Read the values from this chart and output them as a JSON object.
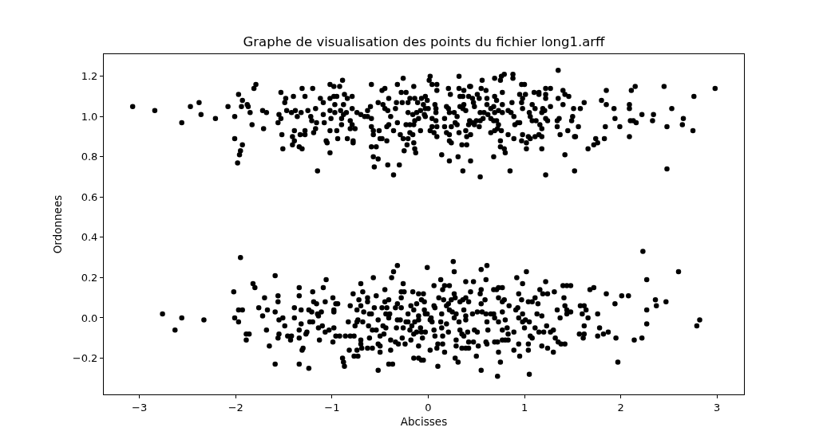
{
  "chart_data": {
    "type": "scatter",
    "title": "Graphe de visualisation des points du fichier long1.arff",
    "xlabel": "Abcisses",
    "ylabel": "Ordonnees",
    "color": "#000000",
    "marker": "circle",
    "xlim": [
      -3.37,
      3.28
    ],
    "ylim": [
      -0.38,
      1.31
    ],
    "xticks": [
      {
        "value": -3,
        "label": "−3"
      },
      {
        "value": -2,
        "label": "−2"
      },
      {
        "value": -1,
        "label": "−1"
      },
      0,
      1,
      2,
      3
    ],
    "yticks": [
      {
        "value": -0.2,
        "label": "−0.2"
      },
      {
        "value": 0,
        "label": "0.0"
      },
      0.2,
      0.4,
      0.6,
      0.8,
      {
        "value": 1,
        "label": "1.0"
      },
      1.2
    ],
    "x": [
      -3.07,
      -2.84,
      -2.56,
      -2.47,
      -2.38,
      -2.36,
      -2.21,
      -2.08,
      -2.01,
      -1.97,
      -1.93,
      -1.94,
      -1.88,
      -1.87,
      -1.85,
      -1.81,
      -1.79,
      -1.83,
      -1.71,
      -1.72,
      -1.68,
      -2.01,
      -1.93,
      -1.95,
      -1.96,
      -1.98,
      -1.53,
      -1.48,
      -1.49,
      -1.4,
      -1.31,
      -1.28,
      -1.2,
      -1.55,
      -1.53,
      -1.56,
      -1.47,
      -1.42,
      -1.38,
      -1.36,
      -1.32,
      -1.25,
      -1.22,
      -1.21,
      -1.17,
      -1.16,
      -1.52,
      -1.51,
      -1.41,
      -1.39,
      -1.39,
      -1.41,
      -1.34,
      -1.31,
      -1.33,
      -1.28,
      -1.28,
      -1.19,
      -1.17,
      -1.15,
      -1.12,
      -1.09,
      -1.02,
      -0.98,
      -0.92,
      -0.89,
      -1.02,
      -0.98,
      -0.95,
      -0.97,
      -0.88,
      -0.87,
      -0.84,
      -0.79,
      -1.09,
      -1.08,
      -1.02,
      -1.01,
      -0.97,
      -0.91,
      -0.88,
      -0.9,
      -0.85,
      -0.79,
      -0.74,
      -0.7,
      -0.66,
      -0.63,
      -0.59,
      -0.63,
      -0.6,
      -0.59,
      -0.9,
      -0.81,
      -0.79,
      -0.76,
      -0.81,
      -1.02,
      -0.95,
      -0.94,
      -1.06,
      -1.05,
      -1.02,
      -0.84,
      -0.78,
      -0.78,
      -0.59,
      -0.57,
      -0.57,
      -0.51,
      -0.5,
      -0.48,
      -0.43,
      -0.59,
      -0.54,
      -0.57,
      -0.52,
      -0.56,
      -0.42,
      -0.3,
      -0.36,
      -0.48,
      -0.45,
      -0.52,
      -0.47,
      -0.41,
      -0.45,
      -0.42,
      -0.39,
      -0.41,
      -0.43,
      -0.36,
      -0.32,
      -0.26,
      -0.32,
      -0.28,
      -0.23,
      -0.33,
      -0.34,
      -0.27,
      -0.21,
      -0.19,
      -0.15,
      -0.14,
      -0.11,
      -0.07,
      -0.03,
      -0.05,
      -0.21,
      -0.16,
      -0.12,
      -0.08,
      -0.03,
      -0.1,
      -0.14,
      -0.03,
      -0.23,
      -0.19,
      -0.15,
      -0.08,
      -0.29,
      -0.26,
      -0.19,
      -0.16,
      -0.21,
      -0.22,
      -0.15,
      -0.25,
      -0.14,
      -0.13,
      0.02,
      0.01,
      0.02,
      0.04,
      0.09,
      0.09,
      -0.01,
      0.0,
      -0.04,
      0.07,
      0.08,
      0.08,
      0.04,
      0.08,
      0.04,
      0.09,
      0.06,
      0.09,
      0.14,
      0.22,
      0.21,
      0.23,
      0.32,
      0.32,
      0.37,
      0.33,
      0.36,
      0.43,
      0.44,
      0.42,
      0.46,
      0.19,
      0.21,
      0.22,
      0.27,
      0.3,
      0.33,
      0.37,
      0.39,
      0.36,
      0.17,
      0.17,
      0.24,
      0.28,
      0.3,
      0.32,
      0.19,
      0.22,
      0.22,
      0.24,
      0.35,
      0.4,
      0.4,
      0.44,
      0.39,
      0.42,
      0.43,
      0.46,
      0.48,
      0.53,
      0.5,
      0.54,
      0.57,
      0.54,
      0.58,
      0.62,
      0.61,
      0.65,
      0.68,
      0.69,
      0.65,
      0.68,
      0.71,
      0.73,
      0.72,
      0.65,
      0.69,
      0.76,
      0.48,
      0.47,
      0.51,
      0.53,
      0.55,
      0.56,
      0.6,
      0.61,
      0.69,
      0.75,
      0.76,
      0.79,
      0.88,
      0.88,
      0.77,
      0.69,
      0.71,
      0.77,
      0.73,
      0.77,
      0.83,
      0.86,
      0.87,
      0.89,
      0.9,
      0.93,
      0.95,
      0.83,
      0.89,
      0.75,
      0.75,
      0.79,
      0.8,
      0.68,
      0.44,
      0.36,
      0.54,
      0.85,
      0.31,
      0.97,
      1.0,
      0.95,
      0.98,
      1.01,
      0.97,
      0.98,
      1.05,
      1.06,
      1.08,
      1.11,
      1.1,
      1.15,
      1.15,
      1.22,
      1.27,
      1.22,
      1.22,
      1.19,
      1.21,
      1.18,
      1.22,
      1.24,
      1.27,
      1.08,
      1.12,
      1.16,
      1.18,
      0.98,
      1.04,
      1.06,
      1.11,
      1.15,
      1.18,
      0.97,
      1.02,
      1.02,
      1.18,
      1.22,
      1.35,
      1.35,
      1.4,
      1.42,
      1.46,
      1.4,
      1.36,
      1.34,
      1.34,
      1.37,
      1.42,
      1.45,
      1.51,
      1.49,
      1.5,
      1.56,
      1.58,
      1.53,
      1.52,
      1.62,
      1.52,
      1.66,
      1.72,
      1.76,
      1.74,
      1.8,
      1.85,
      1.85,
      1.93,
      1.94,
      1.84,
      1.83,
      1.99,
      2.09,
      2.09,
      2.11,
      2.15,
      2.1,
      2.13,
      2.16,
      2.09,
      2.22,
      2.33,
      2.34,
      2.45,
      2.53,
      2.48,
      2.48,
      2.65,
      2.64,
      2.75,
      2.76,
      2.98,
      -2.76,
      -2.63,
      -2.56,
      -2.33,
      -2.02,
      -2.01,
      -1.97,
      -1.93,
      -1.97,
      -1.95,
      -1.89,
      -1.86,
      -1.89,
      -1.82,
      -1.8,
      -1.76,
      -1.72,
      -1.7,
      -1.67,
      -1.68,
      -1.65,
      -1.59,
      -1.59,
      -1.56,
      -1.56,
      -1.55,
      -1.51,
      -1.49,
      -1.55,
      -1.56,
      -1.59,
      -1.46,
      -1.42,
      -1.43,
      -1.39,
      -1.39,
      -1.34,
      -1.34,
      -1.32,
      -1.32,
      -1.34,
      -1.34,
      -1.3,
      -1.31,
      -1.34,
      -1.24,
      -1.27,
      -1.26,
      -1.24,
      -1.21,
      -1.2,
      -1.19,
      -1.16,
      -1.15,
      -1.14,
      -1.11,
      -1.23,
      -1.2,
      -1.14,
      -1.1,
      -1.13,
      -1.09,
      -1.06,
      -1.07,
      -1.07,
      -1.03,
      -0.99,
      -0.98,
      -0.98,
      -0.96,
      -0.94,
      -0.98,
      -0.96,
      -0.99,
      -0.92,
      -0.89,
      -0.88,
      -0.87,
      -0.86,
      -0.81,
      -0.77,
      -0.83,
      -0.81,
      -0.78,
      -0.82,
      -0.77,
      -0.73,
      -0.74,
      -0.7,
      -0.69,
      -0.7,
      -0.74,
      -0.73,
      -0.76,
      -0.74,
      -0.72,
      -0.7,
      -0.7,
      -0.68,
      -0.67,
      -0.68,
      -0.63,
      -0.63,
      -0.61,
      -0.59,
      -0.62,
      -0.58,
      -0.61,
      -0.63,
      -0.58,
      -0.57,
      -0.56,
      -0.54,
      -0.52,
      -0.54,
      -0.5,
      -0.52,
      -0.5,
      -0.5,
      -0.52,
      -0.48,
      -0.45,
      -0.45,
      -0.43,
      -0.41,
      -0.44,
      -0.4,
      -0.41,
      -0.47,
      -0.44,
      -0.46,
      -0.39,
      -0.34,
      -0.31,
      -0.39,
      -0.41,
      -0.37,
      -0.38,
      -0.36,
      -0.32,
      -0.34,
      -0.32,
      -0.32,
      -0.33,
      -0.28,
      -0.28,
      -0.25,
      -0.26,
      -0.28,
      -0.29,
      -0.26,
      -0.27,
      -0.24,
      -0.23,
      -0.21,
      -0.21,
      -0.18,
      -0.16,
      -0.19,
      -0.17,
      -0.18,
      -0.15,
      -0.15,
      -0.14,
      -0.12,
      -0.1,
      -0.1,
      -0.1,
      -0.08,
      -0.15,
      -0.12,
      -0.1,
      -0.1,
      -0.07,
      -0.06,
      -0.07,
      -0.07,
      -0.05,
      -0.04,
      -0.03,
      -0.01,
      -0.04,
      0.02,
      0.02,
      -0.01,
      -0.03,
      -0.05,
      0.06,
      0.1,
      0.06,
      0.07,
      0.03,
      0.04,
      0.06,
      0.07,
      0.1,
      0.09,
      0.11,
      0.13,
      0.15,
      0.17,
      0.22,
      0.16,
      0.14,
      0.13,
      0.14,
      0.15,
      0.15,
      0.17,
      0.19,
      0.21,
      0.22,
      0.24,
      0.26,
      0.27,
      0.27,
      0.28,
      0.25,
      0.27,
      0.19,
      0.21,
      0.29,
      0.29,
      0.29,
      0.28,
      0.31,
      0.33,
      0.32,
      0.33,
      0.35,
      0.36,
      0.39,
      0.39,
      0.37,
      0.39,
      0.39,
      0.35,
      0.37,
      0.39,
      0.42,
      0.42,
      0.41,
      0.42,
      0.44,
      0.46,
      0.47,
      0.47,
      0.48,
      0.51,
      0.5,
      0.52,
      0.51,
      0.54,
      0.55,
      0.55,
      0.56,
      0.55,
      0.61,
      0.6,
      0.59,
      0.6,
      0.61,
      0.62,
      0.6,
      0.61,
      0.55,
      0.65,
      0.68,
      0.69,
      0.68,
      0.69,
      0.71,
      0.73,
      0.73,
      0.73,
      0.72,
      0.73,
      0.75,
      0.72,
      0.77,
      0.77,
      0.77,
      0.79,
      0.77,
      0.77,
      0.8,
      0.8,
      0.83,
      0.82,
      0.84,
      0.83,
      0.89,
      0.89,
      0.92,
      0.91,
      0.93,
      0.94,
      0.94,
      0.94,
      0.95,
      0.97,
      0.98,
      0.98,
      0.98,
      1.0,
      1.01,
      1.02,
      1.04,
      1.04,
      1.04,
      1.05,
      1.06,
      1.08,
      1.05,
      1.08,
      1.11,
      1.11,
      1.13,
      1.14,
      1.15,
      1.16,
      1.18,
      1.18,
      1.19,
      1.2,
      1.22,
      1.23,
      1.24,
      1.24,
      1.27,
      1.3,
      1.3,
      1.31,
      1.32,
      1.34,
      1.35,
      1.37,
      1.38,
      1.4,
      1.41,
      1.42,
      1.42,
      1.44,
      1.44,
      1.44,
      1.48,
      1.48,
      1.57,
      1.58,
      1.6,
      1.61,
      1.62,
      1.62,
      1.62,
      1.64,
      1.66,
      1.68,
      1.72,
      1.76,
      1.76,
      1.78,
      1.82,
      1.85,
      1.87,
      1.94,
      1.95,
      1.97,
      2.01,
      2.08,
      2.14,
      2.22,
      2.23,
      2.27,
      2.27,
      2.27,
      2.36,
      2.37,
      2.47,
      2.6,
      2.79,
      2.82
    ],
    "values": [
      1.05,
      1.03,
      0.97,
      1.05,
      1.07,
      1.01,
      0.99,
      1.05,
      1.0,
      1.11,
      1.08,
      1.05,
      1.06,
      1.05,
      1.02,
      1.14,
      1.16,
      0.96,
      0.94,
      1.03,
      1.02,
      0.89,
      0.86,
      0.83,
      0.81,
      0.77,
      1.12,
      1.09,
      1.07,
      1.1,
      1.14,
      1.1,
      1.14,
      1.01,
      0.99,
      0.97,
      1.03,
      1.02,
      1.03,
      1.0,
      1.02,
      1.03,
      1.0,
      0.98,
      1.04,
      0.97,
      0.91,
      0.84,
      0.9,
      0.88,
      0.93,
      0.86,
      0.85,
      0.84,
      0.91,
      0.91,
      0.93,
      0.92,
      0.94,
      0.73,
      1.09,
      1.07,
      1.16,
      1.15,
      1.15,
      1.18,
      1.09,
      1.1,
      1.1,
      1.06,
      1.06,
      1.11,
      1.09,
      1.1,
      1.01,
      0.97,
      1.03,
      0.99,
      1.02,
      1.03,
      1.01,
      0.99,
      1.02,
      1.04,
      1.02,
      1.01,
      1.0,
      1.0,
      0.99,
      1.03,
      1.05,
      1.16,
      0.96,
      0.98,
      0.96,
      0.94,
      0.94,
      0.93,
      0.93,
      0.89,
      0.88,
      0.87,
      0.82,
      0.89,
      0.88,
      0.87,
      0.95,
      0.93,
      0.91,
      0.93,
      0.89,
      0.89,
      0.88,
      0.85,
      0.85,
      0.8,
      0.79,
      0.75,
      0.76,
      0.76,
      0.71,
      1.13,
      1.14,
      1.07,
      1.06,
      1.09,
      1.04,
      1.03,
      1.0,
      0.96,
      0.95,
      0.93,
      0.97,
      1.19,
      1.16,
      1.12,
      1.12,
      1.07,
      1.04,
      1.07,
      1.07,
      1.09,
      1.15,
      1.09,
      1.07,
      1.09,
      1.1,
      1.06,
      1.02,
      1.01,
      1.02,
      1.03,
      1.04,
      0.99,
      0.98,
      1.0,
      0.96,
      0.96,
      0.96,
      0.93,
      0.91,
      0.89,
      0.92,
      0.91,
      0.89,
      0.86,
      0.87,
      0.83,
      0.84,
      0.82,
      1.2,
      1.18,
      0.93,
      1.16,
      1.16,
      1.13,
      1.08,
      1.04,
      1.01,
      1.06,
      1.04,
      1.02,
      0.99,
      0.98,
      0.95,
      0.95,
      0.92,
      0.9,
      0.81,
      0.78,
      1.14,
      1.11,
      1.2,
      1.14,
      1.13,
      1.1,
      1.1,
      1.15,
      1.15,
      1.1,
      1.09,
      1.05,
      1.04,
      1.02,
      1.02,
      1.0,
      1.05,
      1.06,
      1.03,
      1.04,
      0.99,
      0.95,
      0.95,
      0.97,
      0.96,
      0.92,
      0.92,
      0.91,
      0.88,
      0.87,
      0.86,
      0.86,
      0.9,
      0.91,
      0.93,
      0.96,
      0.98,
      0.97,
      0.96,
      0.95,
      0.98,
      0.98,
      0.99,
      1.02,
      1.02,
      1.01,
      1.06,
      1.04,
      1.05,
      1.02,
      0.99,
      0.98,
      0.98,
      0.96,
      0.94,
      0.92,
      0.93,
      0.93,
      1.05,
      1.07,
      1.11,
      1.09,
      1.14,
      1.18,
      1.13,
      1.09,
      1.19,
      1.18,
      1.2,
      1.21,
      1.21,
      1.19,
      1.12,
      1.1,
      1.08,
      1.06,
      1.03,
      1.02,
      1.03,
      1.02,
      1.07,
      1.0,
      0.96,
      0.97,
      0.97,
      0.91,
      0.89,
      0.88,
      0.85,
      0.84,
      0.82,
      0.8,
      0.78,
      0.73,
      0.7,
      0.73,
      0.8,
      1.16,
      1.16,
      1.11,
      1.09,
      1.11,
      1.07,
      1.04,
      1.02,
      1.0,
      1.06,
      1.04,
      1.12,
      1.12,
      1.11,
      1.14,
      1.14,
      1.11,
      1.09,
      1.04,
      1.03,
      1.02,
      0.99,
      0.98,
      1.05,
      0.98,
      0.98,
      0.96,
      0.94,
      0.91,
      0.9,
      0.89,
      0.9,
      0.91,
      0.9,
      0.88,
      0.87,
      0.84,
      0.84,
      0.71,
      1.23,
      1.09,
      1.13,
      1.11,
      1.1,
      1.06,
      0.99,
      0.95,
      0.98,
      0.91,
      0.81,
      0.93,
      1.04,
      0.98,
      1.0,
      0.95,
      1.04,
      0.9,
      0.9,
      1.07,
      0.73,
      0.84,
      0.86,
      0.87,
      0.89,
      1.08,
      1.13,
      1.06,
      1.04,
      0.99,
      0.95,
      0.89,
      0.95,
      1.06,
      1.04,
      1.13,
      1.15,
      0.98,
      0.98,
      0.97,
      0.9,
      1.01,
      0.98,
      1.01,
      1.15,
      1.04,
      0.95,
      0.74,
      0.99,
      0.96,
      0.93,
      1.1,
      1.14,
      0.02,
      -0.06,
      0.0,
      -0.01,
      0.13,
      0.0,
      0.04,
      0.04,
      -0.02,
      0.3,
      -0.08,
      -0.08,
      -0.11,
      0.17,
      0.15,
      0.05,
      0.01,
      0.1,
      0.04,
      -0.06,
      -0.14,
      0.21,
      0.03,
      0.11,
      0.08,
      -0.01,
      0.0,
      -0.04,
      -0.08,
      -0.1,
      -0.23,
      -0.09,
      -0.09,
      -0.11,
      0.0,
      0.05,
      0.11,
      0.15,
      0.04,
      -0.03,
      -0.06,
      -0.1,
      -0.15,
      -0.16,
      -0.23,
      -0.25,
      -0.08,
      -0.07,
      0.04,
      0.03,
      0.13,
      0.08,
      0.07,
      0.02,
      0.01,
      0.03,
      -0.02,
      -0.02,
      -0.05,
      -0.04,
      -0.11,
      0.15,
      0.19,
      0.08,
      -0.07,
      -0.06,
      0.1,
      0.04,
      0.03,
      0.07,
      0.07,
      -0.05,
      -0.09,
      -0.12,
      -0.09,
      -0.2,
      -0.22,
      -0.24,
      -0.09,
      -0.09,
      -0.09,
      -0.02,
      0.06,
      0.12,
      -0.16,
      -0.19,
      -0.19,
      -0.16,
      -0.13,
      -0.15,
      -0.11,
      -0.02,
      -0.01,
      -0.04,
      0.04,
      0.09,
      0.06,
      0.17,
      0.13,
      0.03,
      -0.02,
      0.1,
      0.08,
      0.02,
      0.02,
      -0.04,
      -0.06,
      -0.1,
      -0.15,
      -0.15,
      0.2,
      0.05,
      0.11,
      -0.01,
      -0.06,
      -0.09,
      -0.13,
      -0.14,
      -0.17,
      -0.26,
      0.05,
      0.14,
      0.08,
      0.05,
      0.09,
      0.02,
      0.02,
      0.0,
      -0.04,
      -0.05,
      -0.08,
      -0.11,
      -0.12,
      -0.13,
      -0.16,
      -0.23,
      -0.23,
      0.2,
      0.23,
      0.26,
      0.05,
      0.07,
      -0.01,
      -0.05,
      0.1,
      0.13,
      0.13,
      0.17,
      0.05,
      -0.01,
      -0.05,
      -0.1,
      -0.13,
      -0.02,
      0.02,
      -0.02,
      0.06,
      0.13,
      -0.06,
      -0.04,
      -0.11,
      -0.2,
      0.04,
      -0.02,
      0.07,
      0.12,
      0.01,
      -0.01,
      -0.05,
      -0.08,
      -0.07,
      -0.14,
      -0.2,
      -0.21,
      -0.1,
      -0.07,
      0.09,
      0.12,
      0.04,
      0.02,
      0.25,
      0.08,
      -0.01,
      -0.16,
      0.02,
      -0.07,
      -0.21,
      0.16,
      -0.24,
      0.06,
      0.05,
      0.0,
      -0.02,
      -0.06,
      -0.09,
      -0.13,
      -0.15,
      0.1,
      0.19,
      0.14,
      0.16,
      0.16,
      0.09,
      0.02,
      -0.02,
      -0.05,
      -0.09,
      -0.13,
      -0.17,
      0.06,
      0.07,
      0.04,
      0.09,
      0.28,
      0.23,
      0.12,
      0.1,
      0.03,
      0.0,
      -0.03,
      -0.07,
      0.02,
      -0.11,
      -0.14,
      -0.2,
      -0.22,
      0.08,
      -0.02,
      -0.06,
      -0.15,
      0.09,
      0.18,
      0.1,
      0.04,
      0.01,
      -0.01,
      -0.08,
      -0.09,
      -0.15,
      -0.15,
      -0.12,
      -0.07,
      0.08,
      0.13,
      0.02,
      0.18,
      -0.12,
      -0.06,
      -0.07,
      -0.19,
      -0.14,
      0.03,
      0.12,
      0.14,
      0.07,
      0.03,
      0.24,
      0.26,
      0.19,
      0.09,
      0.02,
      -0.02,
      -0.06,
      -0.12,
      -0.13,
      -0.26,
      0.02,
      0.14,
      0.0,
      0.02,
      -0.12,
      0.14,
      0.15,
      0.1,
      -0.02,
      -0.12,
      -0.17,
      -0.22,
      -0.29,
      0.15,
      0.08,
      0.03,
      0.09,
      -0.06,
      -0.11,
      -0.01,
      -0.11,
      -0.11,
      -0.05,
      0.06,
      -0.08,
      -0.07,
      -0.16,
      0.2,
      0.04,
      0.05,
      0.12,
      0.0,
      -0.13,
      -0.19,
      0.09,
      0.17,
      0.02,
      -0.02,
      -0.05,
      -0.01,
      0.23,
      0.08,
      -0.13,
      -0.16,
      -0.02,
      -0.09,
      -0.1,
      -0.28,
      0.08,
      0.1,
      -0.05,
      0.02,
      0.07,
      -0.07,
      0.14,
      0.01,
      -0.14,
      0.12,
      -0.07,
      0.18,
      -0.04,
      0.12,
      -0.15,
      -0.07,
      -0.06,
      -0.17,
      0.13,
      -0.1,
      0.04,
      -0.12,
      0.0,
      -0.13,
      0.16,
      0.1,
      0.06,
      -0.13,
      0.16,
      0.02,
      0.04,
      0.16,
      0.03,
      -0.08,
      0.06,
      0.02,
      -0.1,
      -0.08,
      0.06,
      -0.04,
      0.04,
      0.0,
      0.14,
      0.15,
      0.02,
      -0.09,
      -0.05,
      -0.08,
      0.12,
      -0.07,
      0.07,
      -0.1,
      -0.22,
      0.11,
      0.11,
      -0.11,
      -0.1,
      0.33,
      0.04,
      0.19,
      -0.03,
      0.09,
      0.06,
      0.08,
      0.23,
      -0.04,
      -0.01
    ]
  }
}
